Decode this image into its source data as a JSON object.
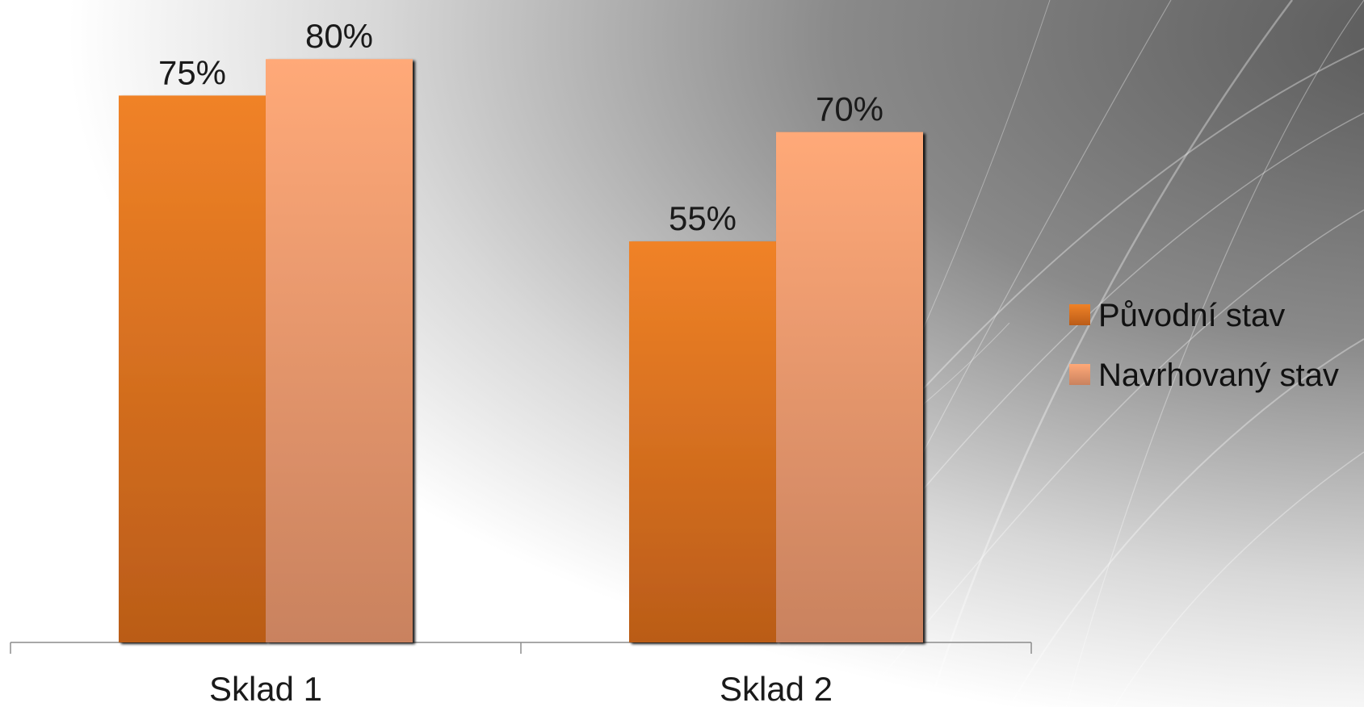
{
  "chart_data": {
    "type": "bar",
    "categories": [
      "Sklad 1",
      "Sklad 2"
    ],
    "series": [
      {
        "name": "Původní stav",
        "values": [
          75,
          55
        ],
        "labels": [
          "75%",
          "55%"
        ],
        "color": "#E2711D"
      },
      {
        "name": "Navrhovaný stav",
        "values": [
          80,
          70
        ],
        "labels": [
          "80%",
          "70%"
        ],
        "color": "#F4A270"
      }
    ],
    "unit": "%",
    "ylim": [
      0,
      87
    ],
    "grid": false,
    "legend_position": "right",
    "title": "",
    "xlabel": "",
    "ylabel": ""
  }
}
